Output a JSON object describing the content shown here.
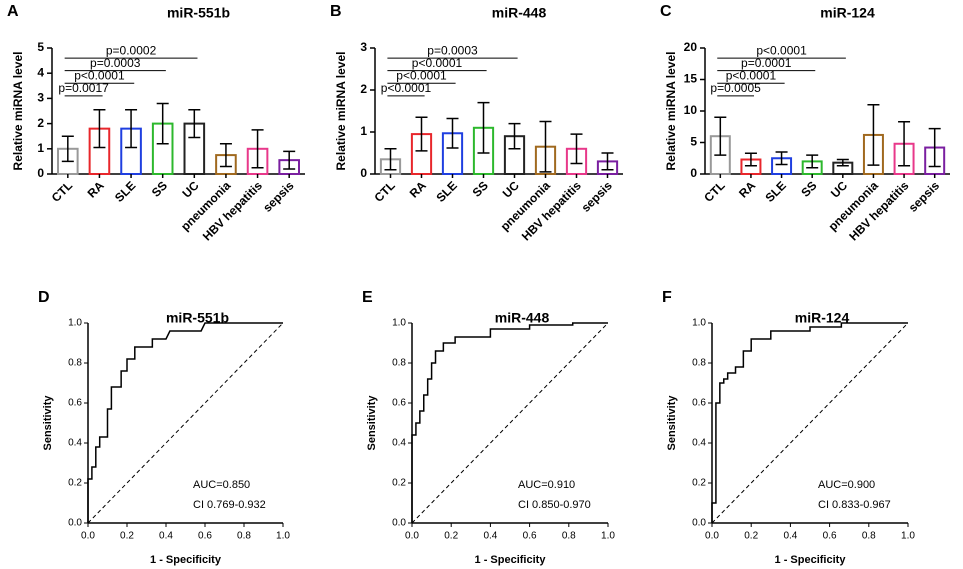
{
  "chart_data": [
    {
      "type": "bar",
      "panel": "A",
      "title": "miR-551b",
      "ylabel": "Relative miRNA level",
      "categories": [
        "CTL",
        "RA",
        "SLE",
        "SS",
        "UC",
        "pneumonia",
        "HBV hepatitis",
        "sepsis"
      ],
      "values": [
        1.0,
        1.8,
        1.8,
        2.0,
        2.0,
        0.75,
        1.0,
        0.55
      ],
      "errors": [
        0.5,
        0.75,
        0.75,
        0.8,
        0.55,
        0.45,
        0.75,
        0.35
      ],
      "colors": [
        "#999999",
        "#e8262b",
        "#1f3fe0",
        "#2db82d",
        "#222222",
        "#a0691f",
        "#e8388a",
        "#7a1fa0"
      ],
      "ylim": [
        0,
        5
      ],
      "yticks": [
        0,
        1,
        2,
        3,
        4,
        5
      ],
      "annotations": [
        "p=0.0017",
        "p<0.0001",
        "p=0.0003",
        "p=0.0002"
      ]
    },
    {
      "type": "bar",
      "panel": "B",
      "title": "miR-448",
      "ylabel": "Relative miRNA level",
      "categories": [
        "CTL",
        "RA",
        "SLE",
        "SS",
        "UC",
        "pneumonia",
        "HBV hepatitis",
        "sepsis"
      ],
      "values": [
        0.35,
        0.95,
        0.97,
        1.1,
        0.9,
        0.65,
        0.6,
        0.3
      ],
      "errors": [
        0.25,
        0.4,
        0.35,
        0.6,
        0.3,
        0.6,
        0.35,
        0.2
      ],
      "colors": [
        "#999999",
        "#e8262b",
        "#1f3fe0",
        "#2db82d",
        "#222222",
        "#a0691f",
        "#e8388a",
        "#7a1fa0"
      ],
      "ylim": [
        0,
        3
      ],
      "yticks": [
        0,
        1,
        2,
        3
      ],
      "annotations": [
        "p<0.0001",
        "p<0.0001",
        "p<0.0001",
        "p=0.0003"
      ]
    },
    {
      "type": "bar",
      "panel": "C",
      "title": "miR-124",
      "ylabel": "Relative miRNA level",
      "categories": [
        "CTL",
        "RA",
        "SLE",
        "SS",
        "UC",
        "pneumonia",
        "HBV hepatitis",
        "sepsis"
      ],
      "values": [
        6.0,
        2.3,
        2.5,
        2.0,
        1.8,
        6.2,
        4.8,
        4.2
      ],
      "errors": [
        3.0,
        1.0,
        1.0,
        1.0,
        0.5,
        4.8,
        3.5,
        3.0
      ],
      "colors": [
        "#999999",
        "#e8262b",
        "#1f3fe0",
        "#2db82d",
        "#222222",
        "#a0691f",
        "#e8388a",
        "#7a1fa0"
      ],
      "ylim": [
        0,
        20
      ],
      "yticks": [
        0,
        5,
        10,
        15,
        20
      ],
      "annotations": [
        "p=0.0005",
        "p<0.0001",
        "p=0.0001",
        "p<0.0001"
      ]
    },
    {
      "type": "line",
      "panel": "D",
      "title": "miR-551b",
      "xlabel": "1 - Specificity",
      "ylabel": "Sensitivity",
      "auc": "AUC=0.850",
      "ci": "CI  0.769-0.932",
      "color": "#000000",
      "x": [
        0,
        0,
        0.02,
        0.02,
        0.04,
        0.04,
        0.06,
        0.06,
        0.1,
        0.1,
        0.12,
        0.12,
        0.17,
        0.17,
        0.2,
        0.2,
        0.24,
        0.24,
        0.33,
        0.33,
        0.4,
        0.42,
        0.58,
        0.6,
        1
      ],
      "values": [
        0,
        0.22,
        0.22,
        0.28,
        0.28,
        0.38,
        0.38,
        0.43,
        0.43,
        0.57,
        0.57,
        0.68,
        0.68,
        0.76,
        0.76,
        0.82,
        0.82,
        0.88,
        0.88,
        0.92,
        0.92,
        0.96,
        0.96,
        1,
        1
      ],
      "xlim": [
        0,
        1
      ],
      "ylim": [
        0,
        1
      ],
      "xticks": [
        {
          "value": 0,
          "label": "0.0"
        },
        {
          "value": 0.2,
          "label": "0.2"
        },
        {
          "value": 0.4,
          "label": "0.4"
        },
        {
          "value": 0.6,
          "label": "0.6"
        },
        {
          "value": 0.8,
          "label": "0.8"
        },
        {
          "value": 1,
          "label": "1.0"
        }
      ],
      "yticks": [
        {
          "value": 0,
          "label": "0.0"
        },
        {
          "value": 0.2,
          "label": "0.2"
        },
        {
          "value": 0.4,
          "label": "0.4"
        },
        {
          "value": 0.6,
          "label": "0.6"
        },
        {
          "value": 0.8,
          "label": "0.8"
        },
        {
          "value": 1,
          "label": "1.0"
        }
      ]
    },
    {
      "type": "line",
      "panel": "E",
      "title": "miR-448",
      "xlabel": "1 - Specificity",
      "ylabel": "Sensitivity",
      "auc": "AUC=0.910",
      "ci": "CI  0.850-0.970",
      "color": "#000000",
      "x": [
        0,
        0,
        0.02,
        0.02,
        0.04,
        0.04,
        0.06,
        0.06,
        0.08,
        0.08,
        0.1,
        0.1,
        0.12,
        0.12,
        0.16,
        0.16,
        0.22,
        0.22,
        0.4,
        0.4,
        0.6,
        0.6,
        0.82,
        0.82,
        1
      ],
      "values": [
        0,
        0.44,
        0.44,
        0.5,
        0.5,
        0.56,
        0.56,
        0.64,
        0.64,
        0.72,
        0.72,
        0.8,
        0.8,
        0.86,
        0.86,
        0.9,
        0.9,
        0.93,
        0.93,
        0.97,
        0.97,
        0.99,
        0.99,
        1,
        1
      ],
      "xlim": [
        0,
        1
      ],
      "ylim": [
        0,
        1
      ],
      "xticks": [
        {
          "value": 0,
          "label": "0.0"
        },
        {
          "value": 0.2,
          "label": "0.2"
        },
        {
          "value": 0.4,
          "label": "0.4"
        },
        {
          "value": 0.6,
          "label": "0.6"
        },
        {
          "value": 0.8,
          "label": "0.8"
        },
        {
          "value": 1,
          "label": "1.0"
        }
      ],
      "yticks": [
        {
          "value": 0,
          "label": "0.0"
        },
        {
          "value": 0.2,
          "label": "0.2"
        },
        {
          "value": 0.4,
          "label": "0.4"
        },
        {
          "value": 0.6,
          "label": "0.6"
        },
        {
          "value": 0.8,
          "label": "0.8"
        },
        {
          "value": 1,
          "label": "1.0"
        }
      ]
    },
    {
      "type": "line",
      "panel": "F",
      "title": "miR-124",
      "xlabel": "1 - Specificity",
      "ylabel": "Sensitivity",
      "auc": "AUC=0.900",
      "ci": "CI  0.833-0.967",
      "color": "#000000",
      "x": [
        0,
        0,
        0.02,
        0.02,
        0.04,
        0.04,
        0.06,
        0.06,
        0.08,
        0.08,
        0.12,
        0.12,
        0.16,
        0.16,
        0.2,
        0.2,
        0.3,
        0.3,
        0.5,
        0.5,
        0.66,
        0.66,
        1
      ],
      "values": [
        0,
        0.1,
        0.1,
        0.6,
        0.6,
        0.7,
        0.7,
        0.72,
        0.72,
        0.75,
        0.75,
        0.78,
        0.78,
        0.86,
        0.86,
        0.92,
        0.92,
        0.96,
        0.96,
        0.98,
        0.98,
        1,
        1
      ],
      "xlim": [
        0,
        1
      ],
      "ylim": [
        0,
        1
      ],
      "xticks": [
        {
          "value": 0,
          "label": "0.0"
        },
        {
          "value": 0.2,
          "label": "0.2"
        },
        {
          "value": 0.4,
          "label": "0.4"
        },
        {
          "value": 0.6,
          "label": "0.6"
        },
        {
          "value": 0.8,
          "label": "0.8"
        },
        {
          "value": 1,
          "label": "1.0"
        }
      ],
      "yticks": [
        {
          "value": 0,
          "label": "0.0"
        },
        {
          "value": 0.2,
          "label": "0.2"
        },
        {
          "value": 0.4,
          "label": "0.4"
        },
        {
          "value": 0.6,
          "label": "0.6"
        },
        {
          "value": 0.8,
          "label": "0.8"
        },
        {
          "value": 1,
          "label": "1.0"
        }
      ]
    }
  ]
}
